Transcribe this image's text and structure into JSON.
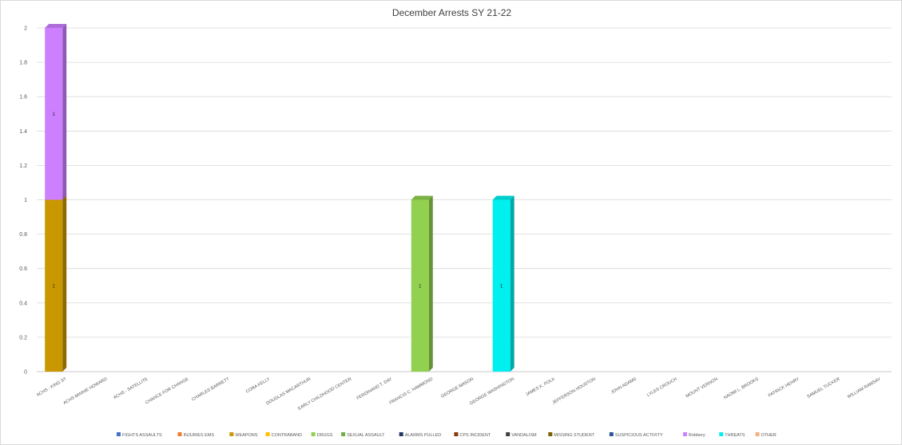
{
  "chart_data": {
    "type": "bar",
    "stacked": true,
    "title": "December Arrests SY 21-22",
    "xlabel": "",
    "ylabel": "",
    "ylim": [
      0,
      2
    ],
    "yticks": [
      "0",
      "0.2",
      "0.4",
      "0.6",
      "0.8",
      "1",
      "1.2",
      "1.4",
      "1.6",
      "1.8",
      "2"
    ],
    "grid": true,
    "legend_position": "bottom",
    "categories": [
      "ACHS - KING ST",
      "ACHS MINNIE HOWARD",
      "ACHS - SATELLITE",
      "CHANCE FOR CHANGE",
      "CHARLES BARRETT",
      "CORA KELLY",
      "DOUGLAS MACARTHUR",
      "EARLY CHILDHOOD CENTER",
      "FERDINAND T. DAY",
      "FRANCIS C. HAMMOND",
      "GEORGE MASON",
      "GEORGE WASHINGTON",
      "JAMES K. POLK",
      "JEFFERSON HOUSTON",
      "JOHN ADAMS",
      "LYLES CROUCH",
      "MOUNT VERNON",
      "NAOMI L. BROOKS",
      "PATRICK HENRY",
      "SAMUEL TUCKER",
      "WILLIAM RAMSAY"
    ],
    "series": [
      {
        "name": "FIGHTS ASSAULTS",
        "color": "#4472c4",
        "values": [
          0,
          0,
          0,
          0,
          0,
          0,
          0,
          0,
          0,
          0,
          0,
          0,
          0,
          0,
          0,
          0,
          0,
          0,
          0,
          0,
          0
        ]
      },
      {
        "name": "INJURIES EMS",
        "color": "#ed7d31",
        "values": [
          0,
          0,
          0,
          0,
          0,
          0,
          0,
          0,
          0,
          0,
          0,
          0,
          0,
          0,
          0,
          0,
          0,
          0,
          0,
          0,
          0
        ]
      },
      {
        "name": "WEAPONS",
        "color": "#c99800",
        "values": [
          1,
          0,
          0,
          0,
          0,
          0,
          0,
          0,
          0,
          0,
          0,
          0,
          0,
          0,
          0,
          0,
          0,
          0,
          0,
          0,
          0
        ]
      },
      {
        "name": "CONTRABAND",
        "color": "#ffc000",
        "values": [
          0,
          0,
          0,
          0,
          0,
          0,
          0,
          0,
          0,
          0,
          0,
          0,
          0,
          0,
          0,
          0,
          0,
          0,
          0,
          0,
          0
        ]
      },
      {
        "name": "DRUGS",
        "color": "#92d050",
        "values": [
          0,
          0,
          0,
          0,
          0,
          0,
          0,
          0,
          0,
          1,
          0,
          0,
          0,
          0,
          0,
          0,
          0,
          0,
          0,
          0,
          0
        ]
      },
      {
        "name": "SEXUAL ASSAULT",
        "color": "#70ad47",
        "values": [
          0,
          0,
          0,
          0,
          0,
          0,
          0,
          0,
          0,
          0,
          0,
          0,
          0,
          0,
          0,
          0,
          0,
          0,
          0,
          0,
          0
        ]
      },
      {
        "name": "ALARMS PULLED",
        "color": "#1f3864",
        "values": [
          0,
          0,
          0,
          0,
          0,
          0,
          0,
          0,
          0,
          0,
          0,
          0,
          0,
          0,
          0,
          0,
          0,
          0,
          0,
          0,
          0
        ]
      },
      {
        "name": "CPS INCIDENT",
        "color": "#843c0c",
        "values": [
          0,
          0,
          0,
          0,
          0,
          0,
          0,
          0,
          0,
          0,
          0,
          0,
          0,
          0,
          0,
          0,
          0,
          0,
          0,
          0,
          0
        ]
      },
      {
        "name": "VANDALISM",
        "color": "#404040",
        "values": [
          0,
          0,
          0,
          0,
          0,
          0,
          0,
          0,
          0,
          0,
          0,
          0,
          0,
          0,
          0,
          0,
          0,
          0,
          0,
          0,
          0
        ]
      },
      {
        "name": "MISSING STUDENT",
        "color": "#7f6000",
        "values": [
          0,
          0,
          0,
          0,
          0,
          0,
          0,
          0,
          0,
          0,
          0,
          0,
          0,
          0,
          0,
          0,
          0,
          0,
          0,
          0,
          0
        ]
      },
      {
        "name": "SUSPICIOUS ACTIVITY",
        "color": "#2e5597",
        "values": [
          0,
          0,
          0,
          0,
          0,
          0,
          0,
          0,
          0,
          0,
          0,
          0,
          0,
          0,
          0,
          0,
          0,
          0,
          0,
          0,
          0
        ]
      },
      {
        "name": "Robbery",
        "color": "#cc80ff",
        "values": [
          1,
          0,
          0,
          0,
          0,
          0,
          0,
          0,
          0,
          0,
          0,
          0,
          0,
          0,
          0,
          0,
          0,
          0,
          0,
          0,
          0
        ]
      },
      {
        "name": "THREATS",
        "color": "#00f0f0",
        "values": [
          0,
          0,
          0,
          0,
          0,
          0,
          0,
          0,
          0,
          0,
          0,
          1,
          0,
          0,
          0,
          0,
          0,
          0,
          0,
          0,
          0
        ]
      },
      {
        "name": "OTHER",
        "color": "#f4b183",
        "values": [
          0,
          0,
          0,
          0,
          0,
          0,
          0,
          0,
          0,
          0,
          0,
          0,
          0,
          0,
          0,
          0,
          0,
          0,
          0,
          0,
          0
        ]
      }
    ]
  }
}
